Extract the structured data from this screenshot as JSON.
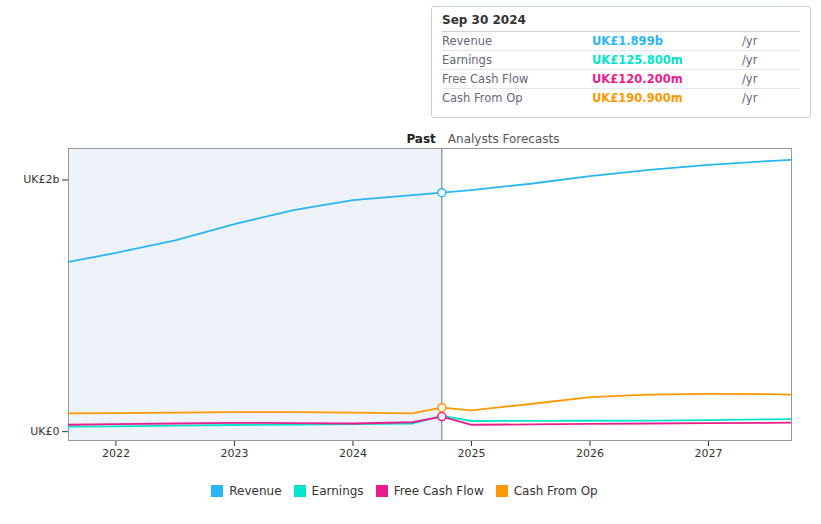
{
  "chart_data": {
    "type": "line",
    "x": [
      2021.6,
      2022.0,
      2022.5,
      2023.0,
      2023.5,
      2024.0,
      2024.5,
      2024.75,
      2025.0,
      2025.5,
      2026.0,
      2026.5,
      2027.0,
      2027.5,
      2027.7
    ],
    "series": [
      {
        "name": "Revenue",
        "color": "#29b6f6",
        "values": [
          1.35,
          1.42,
          1.52,
          1.65,
          1.76,
          1.84,
          1.88,
          1.899,
          1.92,
          1.97,
          2.03,
          2.08,
          2.12,
          2.15,
          2.16
        ]
      },
      {
        "name": "Earnings",
        "color": "#00e5cc",
        "values": [
          0.04,
          0.043,
          0.048,
          0.053,
          0.057,
          0.06,
          0.065,
          0.1258,
          0.085,
          0.086,
          0.087,
          0.088,
          0.092,
          0.098,
          0.1
        ]
      },
      {
        "name": "Free Cash Flow",
        "color": "#e91e8c",
        "values": [
          0.055,
          0.06,
          0.065,
          0.07,
          0.068,
          0.065,
          0.075,
          0.1202,
          0.055,
          0.058,
          0.062,
          0.065,
          0.068,
          0.07,
          0.072
        ]
      },
      {
        "name": "Cash From Op",
        "color": "#ff9800",
        "values": [
          0.145,
          0.148,
          0.152,
          0.155,
          0.156,
          0.152,
          0.145,
          0.1909,
          0.17,
          0.22,
          0.275,
          0.295,
          0.3,
          0.298,
          0.295
        ]
      }
    ],
    "xlim": [
      2021.6,
      2027.7
    ],
    "xticks": [
      2022,
      2023,
      2024,
      2025,
      2026,
      2027
    ],
    "ylim": [
      -0.07,
      2.25
    ],
    "yticks": [
      {
        "value": 2,
        "label": "UK£2b"
      },
      {
        "value": 0,
        "label": "UK£0"
      }
    ],
    "regions": [
      {
        "label": "Past",
        "x1": 2021.6,
        "x2": 2024.75
      },
      {
        "label": "Analysts Forecasts",
        "x1": 2024.75,
        "x2": 2027.7
      }
    ],
    "tooltip": {
      "title": "Sep 30 2024",
      "x": 2024.75,
      "values": [
        1.899,
        0.1258,
        0.1202,
        0.1909
      ],
      "value_labels": [
        "UK£1.899b",
        "UK£125.800m",
        "UK£120.200m",
        "UK£190.900m"
      ],
      "unit": "/yr",
      "markers": [
        "Revenue",
        "Free Cash Flow",
        "Cash From Op"
      ]
    },
    "legend": "bottom"
  }
}
